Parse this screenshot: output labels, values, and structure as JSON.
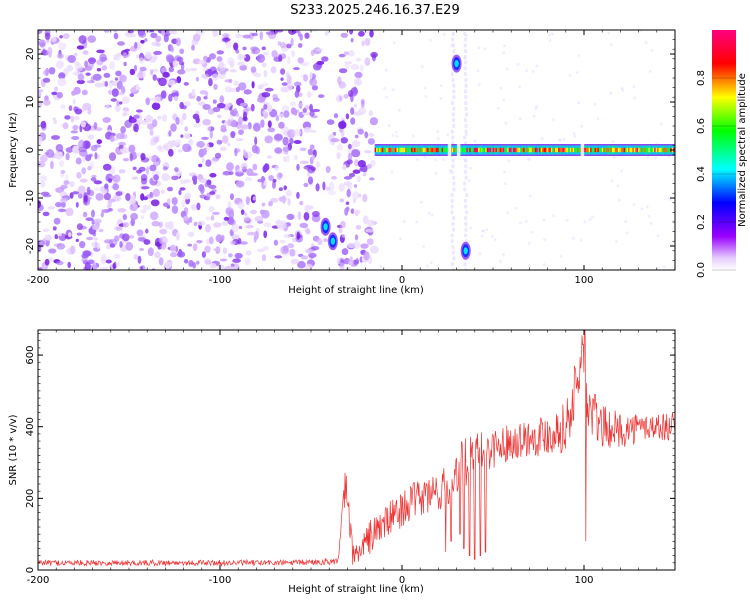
{
  "title": "S233.2025.246.16.37.E29",
  "chart_data": [
    {
      "type": "heatmap",
      "xlabel": "Height of straight line (km)",
      "ylabel": "Frequency (Hz)",
      "xlim": [
        -200,
        150
      ],
      "ylim": [
        -25,
        25
      ],
      "xticks": [
        -200,
        -100,
        0,
        100
      ],
      "yticks": [
        -20,
        -10,
        0,
        10,
        20
      ],
      "noise_region_x": [
        -200,
        -15
      ],
      "signal_band": {
        "frequency_hz": 0,
        "x_start": -15,
        "x_end": 150
      },
      "features": [
        {
          "label": "blob",
          "x": -42,
          "y": -16,
          "amplitude": 0.3
        },
        {
          "label": "blob",
          "x": -38,
          "y": -19,
          "amplitude": 0.25
        },
        {
          "label": "blob",
          "x": 30,
          "y": 18,
          "amplitude": 0.3
        },
        {
          "label": "blob",
          "x": 35,
          "y": -21,
          "amplitude": 0.35
        }
      ],
      "colorbar": {
        "label": "Normalized spectral amplitude",
        "range": [
          0.0,
          1.0
        ],
        "ticks": [
          "0.0",
          "0.2",
          "0.4",
          "0.6",
          "0.8"
        ],
        "tick_values": [
          0.0,
          0.2,
          0.4,
          0.6,
          0.8
        ],
        "colors": [
          "#ffffff",
          "#9900ff",
          "#0000ff",
          "#00ffff",
          "#00ff00",
          "#ffff00",
          "#ff0000",
          "#ff0080"
        ]
      }
    },
    {
      "type": "line",
      "xlabel": "Height of straight line (km)",
      "ylabel": "SNR (10 * v/v)",
      "xlim": [
        -200,
        150
      ],
      "ylim": [
        0,
        670
      ],
      "xticks": [
        -200,
        -100,
        0,
        100
      ],
      "yticks": [
        0,
        200,
        400,
        600
      ],
      "color": "#ee3333",
      "series": [
        {
          "name": "SNR",
          "x": [
            -200,
            -150,
            -100,
            -60,
            -35,
            -31,
            -29,
            -27,
            -22,
            -18,
            -12,
            -5,
            0,
            5,
            15,
            25,
            30,
            35,
            45,
            60,
            80,
            90,
            98,
            100,
            102,
            110,
            120,
            135,
            150
          ],
          "y": [
            20,
            20,
            20,
            20,
            25,
            240,
            150,
            40,
            60,
            90,
            120,
            150,
            170,
            190,
            210,
            230,
            280,
            300,
            330,
            360,
            380,
            400,
            550,
            660,
            450,
            400,
            390,
            400,
            400
          ],
          "noise": [
            8,
            8,
            8,
            8,
            10,
            60,
            50,
            30,
            40,
            50,
            50,
            50,
            50,
            50,
            60,
            60,
            70,
            70,
            60,
            50,
            60,
            70,
            100,
            120,
            90,
            60,
            50,
            40,
            40
          ]
        }
      ],
      "dips": [
        {
          "x": 24,
          "y": 50
        },
        {
          "x": 27,
          "y": 80
        },
        {
          "x": 32,
          "y": 100
        },
        {
          "x": 34,
          "y": 60
        },
        {
          "x": 37,
          "y": 40
        },
        {
          "x": 40,
          "y": 30
        },
        {
          "x": 43,
          "y": 40
        },
        {
          "x": 46,
          "y": 50
        },
        {
          "x": 101,
          "y": 80
        }
      ]
    }
  ]
}
